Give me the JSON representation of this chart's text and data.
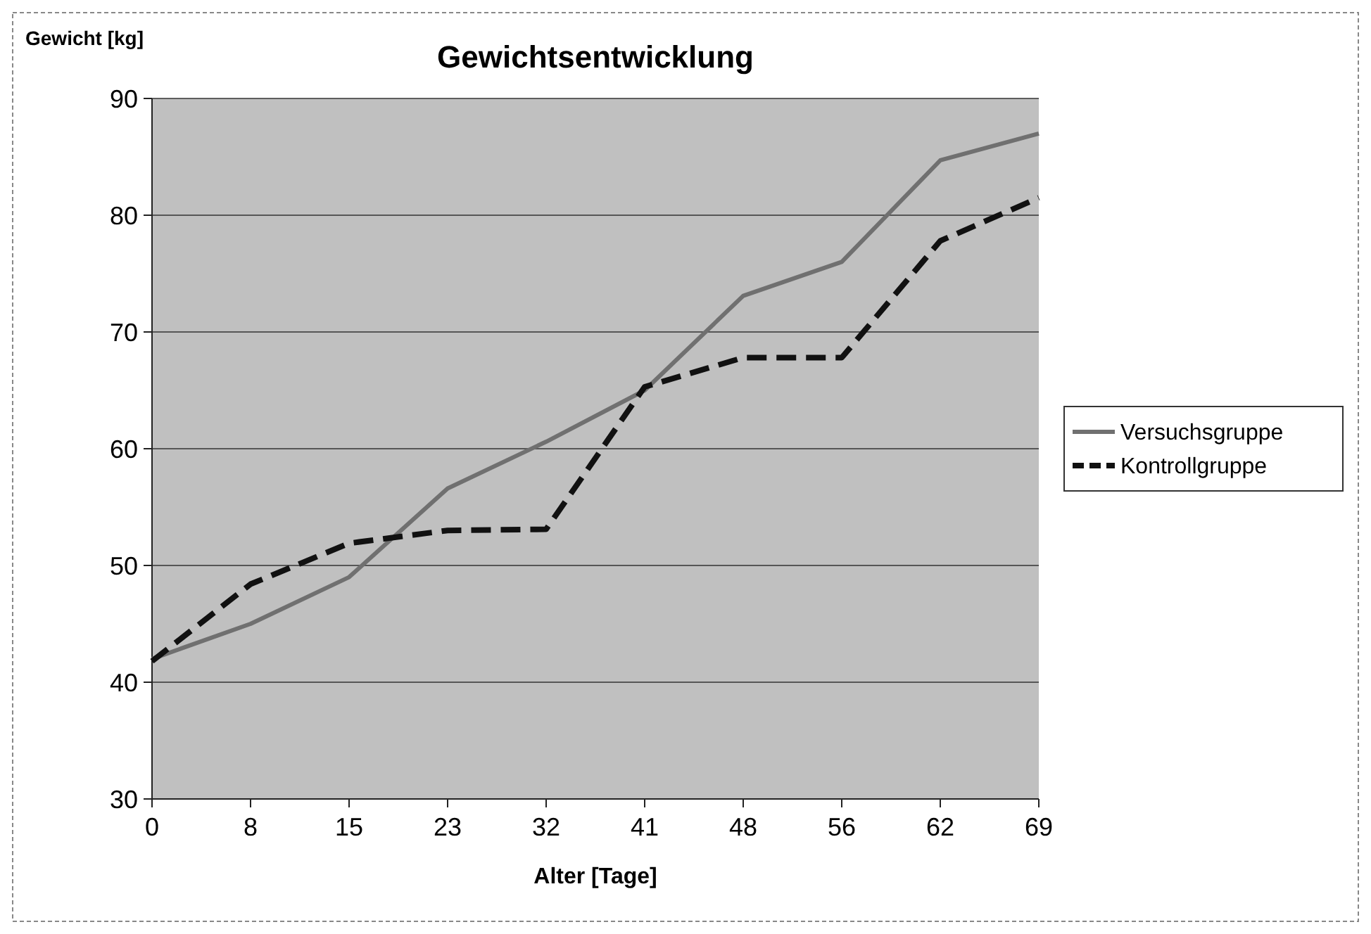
{
  "chart_data": {
    "type": "line",
    "title": "Gewichtsentwicklung",
    "xlabel": "Alter [Tage]",
    "ylabel": "Gewicht [kg]",
    "categories": [
      "0",
      "8",
      "15",
      "23",
      "32",
      "41",
      "48",
      "56",
      "62",
      "69"
    ],
    "series": [
      {
        "name": "Versuchsgruppe",
        "color": "#707070",
        "line_style": "solid",
        "values": [
          42,
          45,
          49,
          56.6,
          60.6,
          65,
          73.1,
          76,
          84.7,
          87
        ]
      },
      {
        "name": "Kontrollgruppe",
        "color": "#111111",
        "line_style": "dashed",
        "values": [
          41.8,
          48.4,
          51.9,
          53,
          53.1,
          65.3,
          67.8,
          67.8,
          77.8,
          81.5
        ]
      }
    ],
    "ylim": [
      30,
      90
    ],
    "yticks": [
      30,
      40,
      50,
      60,
      70,
      80,
      90
    ],
    "grid": "y",
    "legend": "right",
    "marker": "none"
  }
}
